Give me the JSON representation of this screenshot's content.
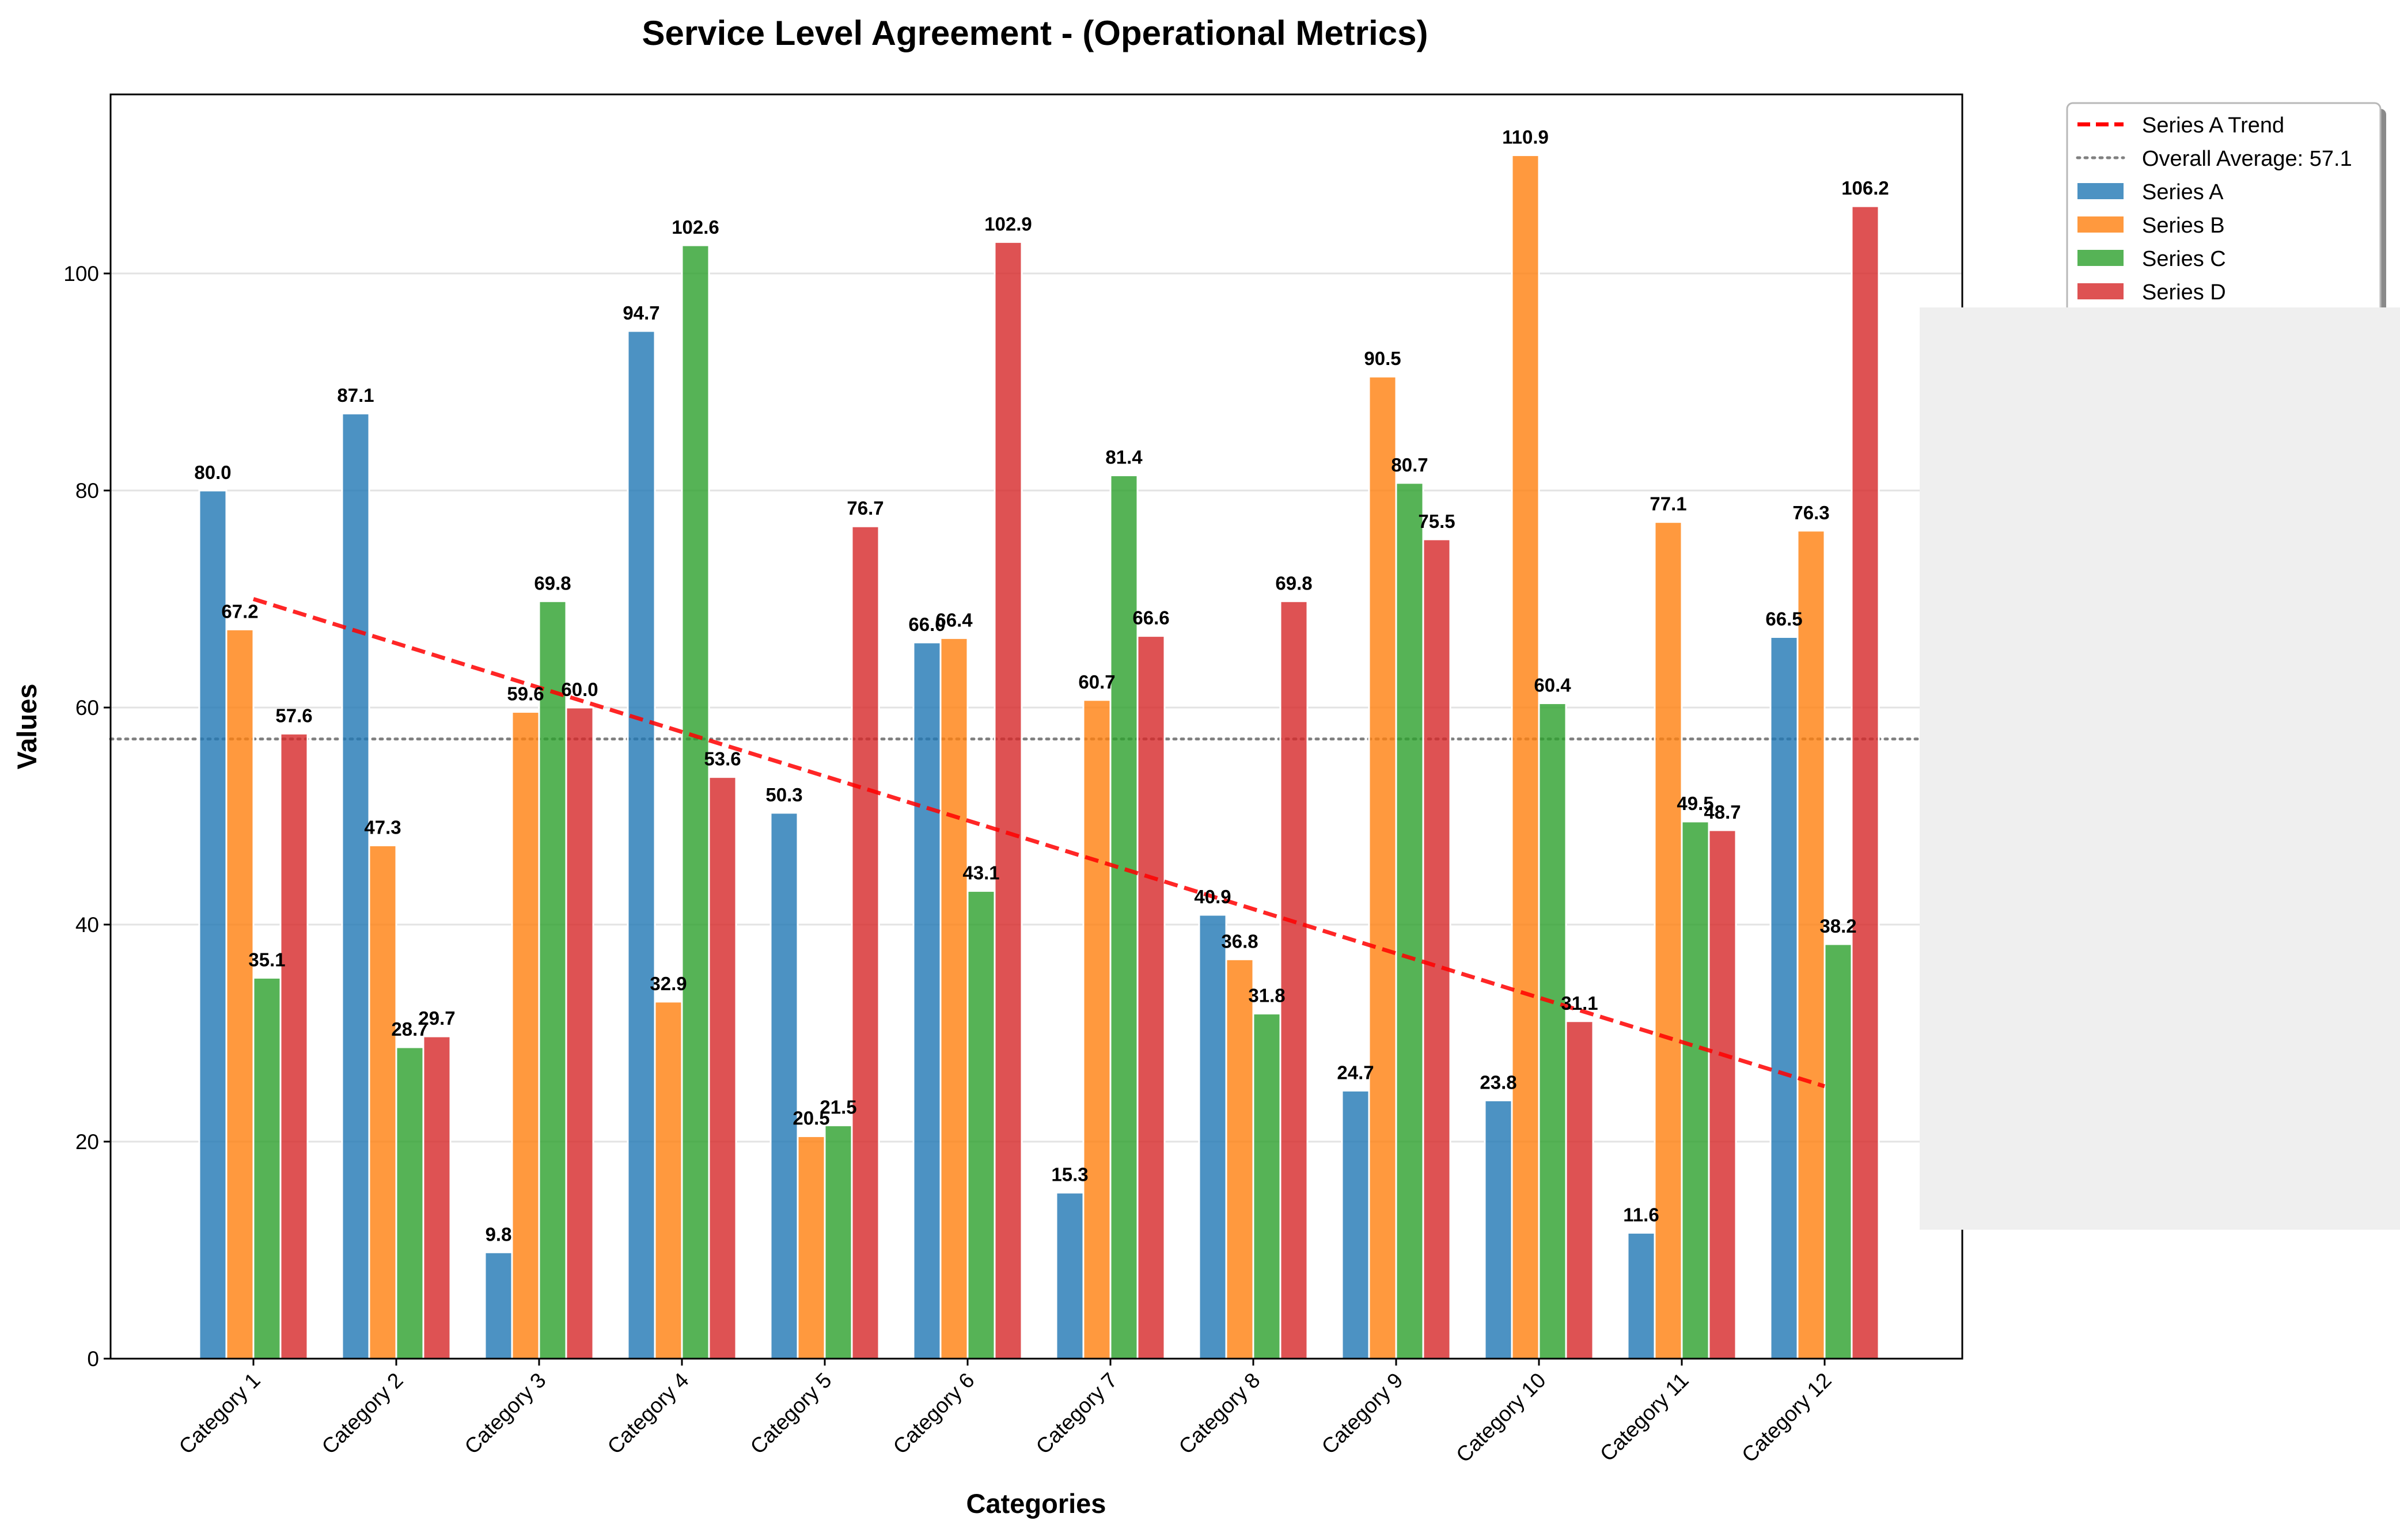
{
  "chart_data": {
    "type": "bar",
    "title": "Service Level Agreement - (Operational Metrics)",
    "xlabel": "Categories",
    "ylabel": "Values",
    "ylim": [
      0,
      116.5
    ],
    "yticks": [
      0,
      20,
      40,
      60,
      80,
      100
    ],
    "grid": "horizontal",
    "legend_position": "outside-top-right",
    "categories": [
      "Category 1",
      "Category 2",
      "Category 3",
      "Category 4",
      "Category 5",
      "Category 6",
      "Category 7",
      "Category 8",
      "Category 9",
      "Category 10",
      "Category 11",
      "Category 12"
    ],
    "series": [
      {
        "name": "Series A",
        "color": "#1f77b4",
        "values": [
          80.0,
          87.1,
          9.8,
          94.7,
          50.3,
          66.0,
          15.3,
          40.9,
          24.7,
          23.8,
          11.6,
          66.5
        ]
      },
      {
        "name": "Series B",
        "color": "#ff7f0e",
        "values": [
          67.2,
          47.3,
          59.6,
          32.9,
          20.5,
          66.4,
          60.7,
          36.8,
          90.5,
          110.9,
          77.1,
          76.3
        ]
      },
      {
        "name": "Series C",
        "color": "#2ca02c",
        "values": [
          35.1,
          28.7,
          69.8,
          102.6,
          21.5,
          43.1,
          81.4,
          31.8,
          80.7,
          60.4,
          49.5,
          38.2
        ]
      },
      {
        "name": "Series D",
        "color": "#d62728",
        "values": [
          57.6,
          29.7,
          60.0,
          53.6,
          76.7,
          102.9,
          66.6,
          69.8,
          75.5,
          31.1,
          48.7,
          106.2
        ]
      }
    ],
    "trend_line": {
      "name": "Series A Trend",
      "color": "#ff0000",
      "start": 70.0,
      "end": 25.1
    },
    "average_line": {
      "name": "Overall Average: 57.1",
      "color": "#808080",
      "value": 57.1
    }
  }
}
